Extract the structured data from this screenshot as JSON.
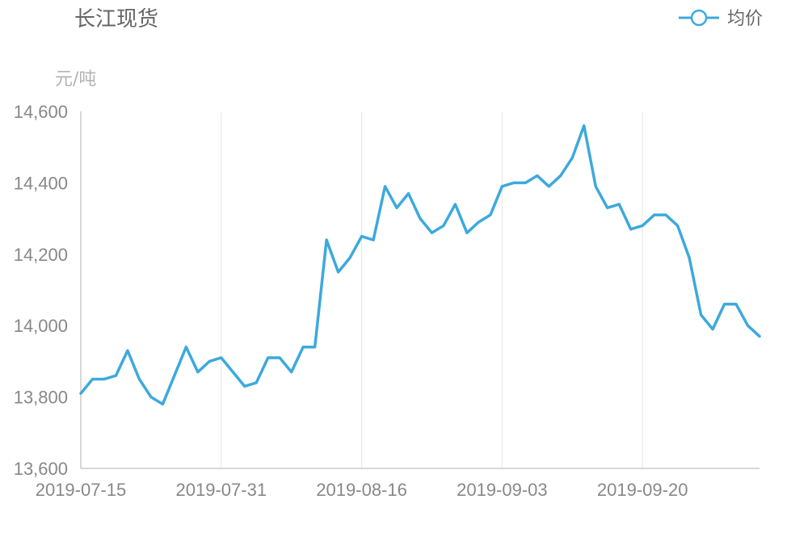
{
  "chart_data": {
    "type": "line",
    "title": "长江现货",
    "unit_label": "元/吨",
    "legend": {
      "label": "均价",
      "position": "top-right"
    },
    "color": "#3da9dc",
    "ylim": [
      13600,
      14600
    ],
    "yticks": [
      13600,
      13800,
      14000,
      14200,
      14400,
      14600
    ],
    "ytick_labels": [
      "13,600",
      "13,800",
      "14,000",
      "14,200",
      "14,400",
      "14,600"
    ],
    "xtick_labels": [
      "2019-07-15",
      "2019-07-31",
      "2019-08-16",
      "2019-09-03",
      "2019-09-20"
    ],
    "xtick_positions": [
      0,
      12,
      24,
      36,
      48
    ],
    "grid": {
      "vertical": true,
      "horizontal": false
    },
    "series": [
      {
        "name": "均价",
        "values": [
          13810,
          13850,
          13850,
          13860,
          13930,
          13850,
          13800,
          13780,
          13860,
          13940,
          13870,
          13900,
          13910,
          13870,
          13830,
          13840,
          13910,
          13910,
          13870,
          13940,
          13940,
          14240,
          14150,
          14190,
          14250,
          14240,
          14390,
          14330,
          14370,
          14300,
          14260,
          14280,
          14340,
          14260,
          14290,
          14310,
          14390,
          14400,
          14400,
          14420,
          14390,
          14420,
          14470,
          14560,
          14390,
          14330,
          14340,
          14270,
          14280,
          14310,
          14310,
          14280,
          14190,
          14030,
          13990,
          14060,
          14060,
          14000,
          13970
        ]
      }
    ]
  }
}
